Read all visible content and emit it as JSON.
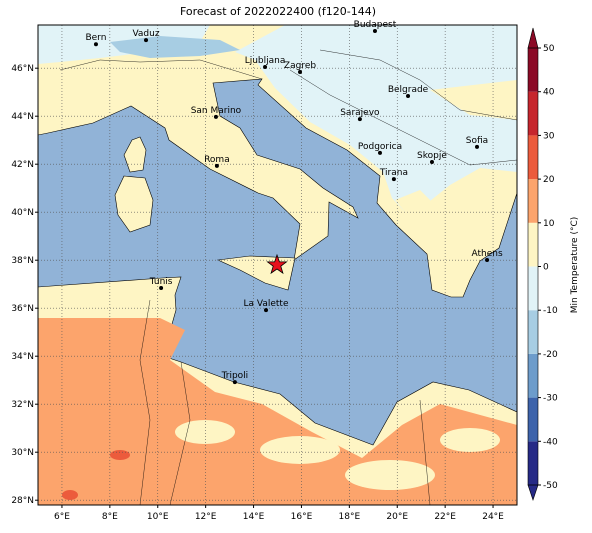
{
  "title": "Forecast of 2022022400 (f120-144)",
  "map": {
    "xlim": [
      5,
      25
    ],
    "ylim": [
      27.8,
      47.8
    ],
    "xticks": [
      {
        "value": 6,
        "label": "6°E"
      },
      {
        "value": 8,
        "label": "8°E"
      },
      {
        "value": 10,
        "label": "10°E"
      },
      {
        "value": 12,
        "label": "12°E"
      },
      {
        "value": 14,
        "label": "14°E"
      },
      {
        "value": 16,
        "label": "16°E"
      },
      {
        "value": 18,
        "label": "18°E"
      },
      {
        "value": 20,
        "label": "20°E"
      },
      {
        "value": 22,
        "label": "22°E"
      },
      {
        "value": 24,
        "label": "24°E"
      }
    ],
    "yticks": [
      {
        "value": 28,
        "label": "28°N"
      },
      {
        "value": 30,
        "label": "30°N"
      },
      {
        "value": 32,
        "label": "32°N"
      },
      {
        "value": 34,
        "label": "34°N"
      },
      {
        "value": 36,
        "label": "36°N"
      },
      {
        "value": 38,
        "label": "38°N"
      },
      {
        "value": 40,
        "label": "40°N"
      },
      {
        "value": 42,
        "label": "42°N"
      },
      {
        "value": 44,
        "label": "44°N"
      },
      {
        "value": 46,
        "label": "46°N"
      }
    ],
    "grid": true,
    "cities": [
      {
        "name": "Bern",
        "lon": 7.42,
        "lat": 47.0
      },
      {
        "name": "Vaduz",
        "lon": 9.51,
        "lat": 47.17
      },
      {
        "name": "Budapest",
        "lon": 19.07,
        "lat": 47.55
      },
      {
        "name": "Ljubljana",
        "lon": 14.48,
        "lat": 46.05
      },
      {
        "name": "Zagreb",
        "lon": 15.94,
        "lat": 45.84
      },
      {
        "name": "Belgrade",
        "lon": 20.45,
        "lat": 44.84
      },
      {
        "name": "San Marino",
        "lon": 12.43,
        "lat": 43.97
      },
      {
        "name": "Sarajevo",
        "lon": 18.44,
        "lat": 43.88
      },
      {
        "name": "Sofia",
        "lon": 23.33,
        "lat": 42.72
      },
      {
        "name": "Roma",
        "lon": 12.47,
        "lat": 41.93
      },
      {
        "name": "Podgorica",
        "lon": 19.28,
        "lat": 42.47
      },
      {
        "name": "Skopje",
        "lon": 21.45,
        "lat": 42.09
      },
      {
        "name": "Tirana",
        "lon": 19.86,
        "lat": 41.38
      },
      {
        "name": "Athens",
        "lon": 23.75,
        "lat": 38.01
      },
      {
        "name": "Tunis",
        "lon": 10.14,
        "lat": 36.84
      },
      {
        "name": "La Valette",
        "lon": 14.52,
        "lat": 35.92
      },
      {
        "name": "Tripoli",
        "lon": 13.22,
        "lat": 32.92
      }
    ],
    "event": {
      "lon": 14.98,
      "lat": 37.8,
      "color": "#e8101c"
    }
  },
  "colorbar": {
    "label": "Min Temperature (°C)",
    "levels": [
      -50,
      -40,
      -30,
      -20,
      -10,
      0,
      10,
      20,
      30,
      40,
      50
    ],
    "colors": [
      "#262a86",
      "#3d63ab",
      "#6d9ccb",
      "#a7cde3",
      "#e1f3f7",
      "#fef5c4",
      "#fca46c",
      "#ec5b3c",
      "#c6262d",
      "#8b0a26"
    ],
    "ticks": [
      -50,
      -40,
      -30,
      -20,
      -10,
      0,
      10,
      20,
      30,
      40,
      50
    ]
  }
}
